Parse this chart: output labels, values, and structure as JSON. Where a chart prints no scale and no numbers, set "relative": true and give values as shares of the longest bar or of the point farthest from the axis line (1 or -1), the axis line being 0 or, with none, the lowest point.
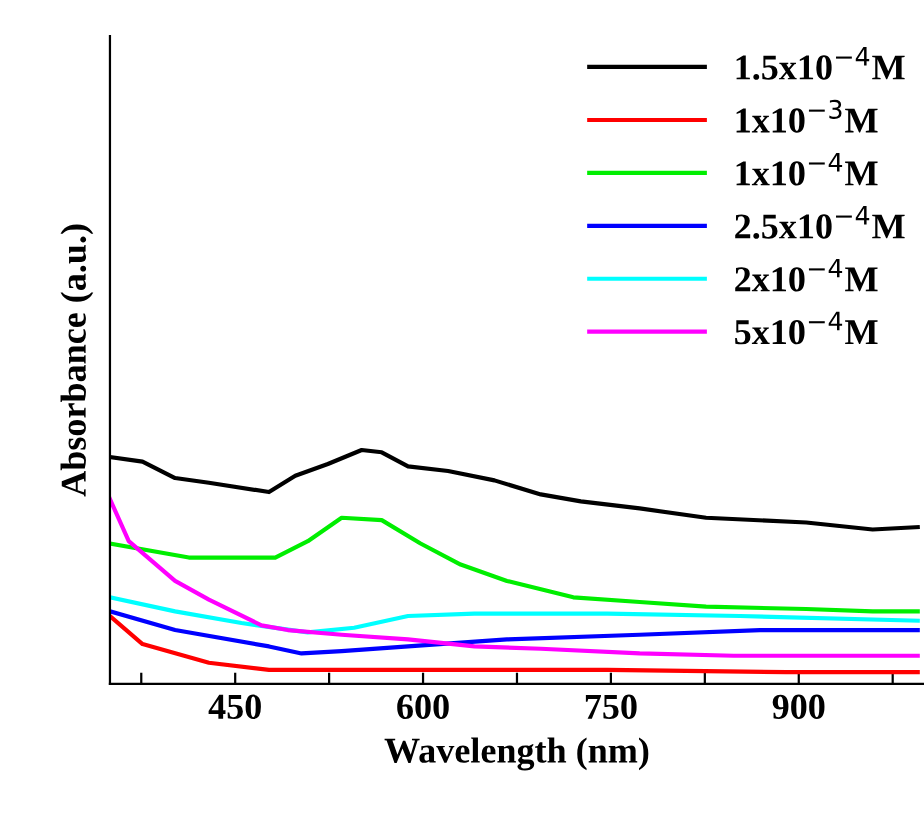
{
  "chart_data": {
    "type": "line",
    "xlabel": "Wavelength (nm)",
    "ylabel": "Absorbance (a.u.)",
    "relative": true,
    "xlim": [
      350,
      1000
    ],
    "xticks": [
      {
        "value": 375,
        "label": null
      },
      450,
      {
        "value": 525,
        "label": null
      },
      600,
      {
        "value": 675,
        "label": null
      },
      750,
      {
        "value": 825,
        "label": null
      },
      900,
      {
        "value": 975,
        "label": null
      }
    ],
    "legend": "top right",
    "grid": false,
    "line_style": "solid",
    "marker": "none",
    "series": [
      {
        "name": "1.5x10$^{−4}$M",
        "color": "#000000",
        "x": [
          350,
          376,
          402,
          429,
          477,
          498,
          524,
          551,
          567,
          588,
          620,
          657,
          694,
          726,
          773,
          826,
          906,
          959,
          995
        ],
        "values": [
          0.97,
          0.95,
          0.88,
          0.86,
          0.82,
          0.89,
          0.94,
          1.0,
          0.99,
          0.93,
          0.91,
          0.87,
          0.81,
          0.78,
          0.75,
          0.71,
          0.69,
          0.66,
          0.67
        ]
      },
      {
        "name": "1x10$^{−3}$M",
        "color": "#ff0000",
        "x": [
          350,
          376,
          429,
          477,
          588,
          747,
          890,
          995
        ],
        "values": [
          0.29,
          0.17,
          0.09,
          0.06,
          0.06,
          0.06,
          0.05,
          0.05
        ]
      },
      {
        "name": "1x10$^{−4}$M",
        "color": "#00ee00",
        "x": [
          350,
          413,
          482,
          508,
          535,
          567,
          598,
          630,
          667,
          720,
          773,
          826,
          906,
          959,
          995
        ],
        "values": [
          0.6,
          0.54,
          0.54,
          0.61,
          0.71,
          0.7,
          0.6,
          0.51,
          0.44,
          0.37,
          0.35,
          0.33,
          0.32,
          0.31,
          0.31
        ]
      },
      {
        "name": "2.5x10$^{−4}$M",
        "color": "#0000ff",
        "x": [
          350,
          402,
          477,
          503,
          535,
          588,
          667,
          773,
          869,
          995
        ],
        "values": [
          0.31,
          0.23,
          0.16,
          0.13,
          0.14,
          0.16,
          0.19,
          0.21,
          0.23,
          0.23
        ]
      },
      {
        "name": "2x10$^{−4}$M",
        "color": "#00ffff",
        "x": [
          350,
          402,
          455,
          508,
          545,
          588,
          641,
          747,
          853,
          995
        ],
        "values": [
          0.37,
          0.31,
          0.26,
          0.22,
          0.24,
          0.29,
          0.3,
          0.3,
          0.29,
          0.27
        ]
      },
      {
        "name": "5x10$^{−4}$M",
        "color": "#ff00ff",
        "x": [
          350,
          365,
          402,
          429,
          471,
          492,
          535,
          588,
          641,
          694,
          773,
          848,
          995
        ],
        "values": [
          0.79,
          0.61,
          0.44,
          0.36,
          0.25,
          0.23,
          0.21,
          0.19,
          0.16,
          0.15,
          0.13,
          0.12,
          0.12
        ]
      }
    ]
  }
}
